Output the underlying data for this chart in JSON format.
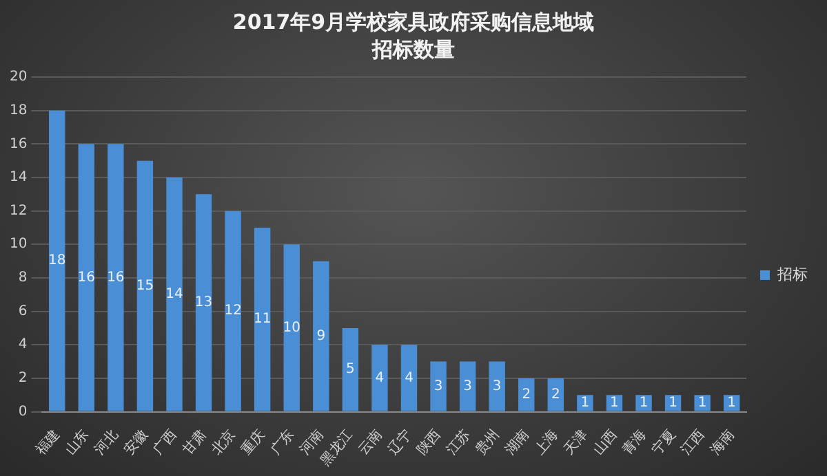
{
  "chart_data": {
    "type": "bar",
    "title": [
      "2017年9月学校家具政府采购信息地域",
      "招标数量"
    ],
    "categories": [
      "福建",
      "山东",
      "河北",
      "安徽",
      "广西",
      "甘肃",
      "北京",
      "重庆",
      "广东",
      "河南",
      "黑龙江",
      "云南",
      "辽宁",
      "陕西",
      "江苏",
      "贵州",
      "湖南",
      "上海",
      "天津",
      "山西",
      "青海",
      "宁夏",
      "江西",
      "海南"
    ],
    "series": [
      {
        "name": "招标",
        "color": "#4a8fd6",
        "values": [
          18,
          16,
          16,
          15,
          14,
          13,
          12,
          11,
          10,
          9,
          5,
          4,
          4,
          3,
          3,
          3,
          2,
          2,
          1,
          1,
          1,
          1,
          1,
          1
        ]
      }
    ],
    "ylim": [
      0,
      20
    ],
    "yticks": [
      0,
      2,
      4,
      6,
      8,
      10,
      12,
      14,
      16,
      18,
      20
    ],
    "grid": "y",
    "legend": "right",
    "data_labels": true
  }
}
